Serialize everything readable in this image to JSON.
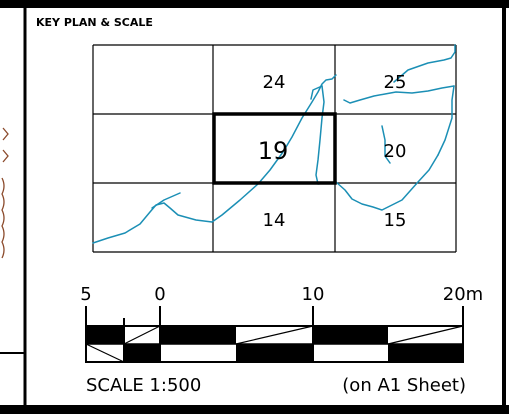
{
  "panel": {
    "title": "KEY PLAN & SCALE"
  },
  "key_plan": {
    "grid_rows": 3,
    "grid_cols": 3,
    "cells": [
      "",
      "24",
      "25",
      "",
      "19",
      "20",
      "",
      "14",
      "15"
    ],
    "highlighted_cell": "19",
    "grid_color": "#000000",
    "river_color": "#1b8fb5"
  },
  "scale_bar": {
    "tick_labels": [
      "5",
      "0",
      "10",
      "20m"
    ],
    "ratio_text": "SCALE 1:500",
    "sheet_text": "(on A1 Sheet)"
  },
  "colors": {
    "frame": "#000000",
    "side_mark": "#8b4a2b"
  }
}
